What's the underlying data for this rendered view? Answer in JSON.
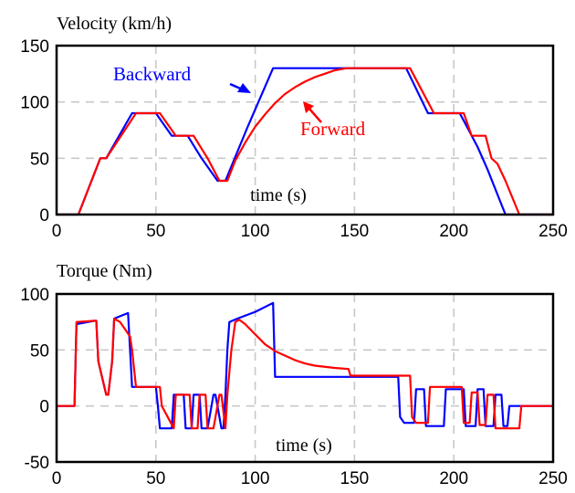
{
  "chart_data": [
    {
      "type": "line",
      "title": "Velocity (km/h)",
      "xlabel": "time (s)",
      "xlim": [
        0,
        250
      ],
      "ylim": [
        0,
        150
      ],
      "xticks": [
        0,
        50,
        100,
        150,
        200,
        250
      ],
      "yticks": [
        0,
        50,
        100,
        150
      ],
      "grid": true,
      "series": [
        {
          "name": "Backward",
          "color": "#0000ff",
          "x": [
            0,
            11,
            22,
            25,
            38,
            50,
            58,
            66,
            73,
            81,
            85,
            96,
            109,
            150,
            176,
            187,
            195,
            203,
            206,
            212,
            217,
            226,
            250
          ],
          "y": [
            0,
            0,
            50,
            50,
            90,
            90,
            70,
            70,
            50,
            30,
            30,
            77,
            130,
            130,
            130,
            90,
            90,
            90,
            80,
            60,
            40,
            0,
            0
          ]
        },
        {
          "name": "Forward",
          "color": "#ff0000",
          "x": [
            0,
            11,
            22,
            25,
            40,
            52,
            60,
            69,
            76,
            82,
            86,
            90,
            95,
            100,
            105,
            110,
            115,
            120,
            125,
            130,
            135,
            140,
            146,
            150,
            178,
            190,
            205,
            209,
            216,
            219,
            222,
            226,
            233,
            250
          ],
          "y": [
            0,
            0,
            50,
            50,
            90,
            90,
            70,
            70,
            50,
            30,
            30,
            48,
            64,
            78,
            89,
            99,
            107,
            113,
            118,
            122,
            125,
            128,
            130,
            130,
            130,
            90,
            90,
            70,
            70,
            50,
            45,
            30,
            0,
            0
          ]
        }
      ],
      "annotations": [
        {
          "text": "Backward",
          "color": "#0000ff"
        },
        {
          "text": "Forward",
          "color": "#ff0000"
        }
      ]
    },
    {
      "type": "line",
      "title": "Torque (Nm)",
      "xlabel": "time (s)",
      "xlim": [
        0,
        250
      ],
      "ylim": [
        -50,
        100
      ],
      "xticks": [
        0,
        50,
        100,
        150,
        200,
        250
      ],
      "yticks": [
        -50,
        0,
        50,
        100
      ],
      "grid": true,
      "series": [
        {
          "name": "Backward",
          "color": "#0000ff",
          "x": [
            0,
            9,
            10,
            19,
            20,
            21,
            25,
            26,
            28,
            29,
            36,
            37,
            38,
            50,
            51,
            52,
            58,
            59,
            64,
            65,
            66,
            68,
            69,
            72,
            73,
            75,
            76,
            79,
            80,
            83,
            84,
            85,
            86,
            87,
            91,
            100,
            109,
            110,
            125,
            146,
            147,
            172,
            173,
            175,
            176,
            180,
            181,
            185,
            186,
            195,
            196,
            205,
            206,
            211,
            212,
            215,
            216,
            220,
            221,
            224,
            225,
            227,
            228,
            230,
            231,
            250
          ],
          "y": [
            0,
            0,
            73,
            76,
            76,
            40,
            10,
            10,
            40,
            78,
            83,
            50,
            17,
            17,
            0,
            -20,
            -20,
            10,
            10,
            -20,
            -20,
            -20,
            10,
            10,
            -20,
            -20,
            -20,
            10,
            10,
            -20,
            -20,
            10,
            50,
            75,
            78,
            84,
            92,
            26,
            26,
            26,
            26,
            26,
            -10,
            -15,
            -15,
            -15,
            15,
            15,
            -18,
            -18,
            15,
            15,
            -18,
            -18,
            15,
            15,
            -18,
            -18,
            10,
            10,
            -18,
            -18,
            0,
            0,
            0,
            0
          ]
        },
        {
          "name": "Forward",
          "color": "#ff0000",
          "x": [
            0,
            9,
            10,
            19,
            20,
            21,
            25,
            26,
            28,
            29,
            32,
            37,
            38,
            40,
            52,
            53,
            59,
            60,
            67,
            68,
            69,
            71,
            72,
            75,
            76,
            78,
            79,
            82,
            83,
            85,
            86,
            88,
            90,
            92,
            95,
            100,
            105,
            110,
            115,
            120,
            125,
            130,
            140,
            147,
            148,
            178,
            179,
            181,
            182,
            187,
            188,
            196,
            197,
            204,
            205,
            208,
            209,
            212,
            213,
            216,
            217,
            220,
            221,
            224,
            225,
            230,
            233,
            234,
            250
          ],
          "y": [
            0,
            0,
            75,
            76,
            76,
            40,
            10,
            10,
            40,
            78,
            75,
            62,
            50,
            17,
            17,
            0,
            -20,
            10,
            10,
            -20,
            -20,
            -20,
            10,
            10,
            -20,
            -20,
            -20,
            10,
            10,
            -20,
            10,
            50,
            75,
            77,
            73,
            64,
            55,
            49,
            45,
            41,
            38,
            36,
            34,
            33,
            27,
            27,
            -10,
            -15,
            -15,
            -15,
            17,
            17,
            17,
            17,
            -15,
            -15,
            12,
            12,
            -17,
            -17,
            10,
            10,
            -20,
            -20,
            -20,
            -20,
            -20,
            0,
            0
          ]
        }
      ]
    }
  ]
}
